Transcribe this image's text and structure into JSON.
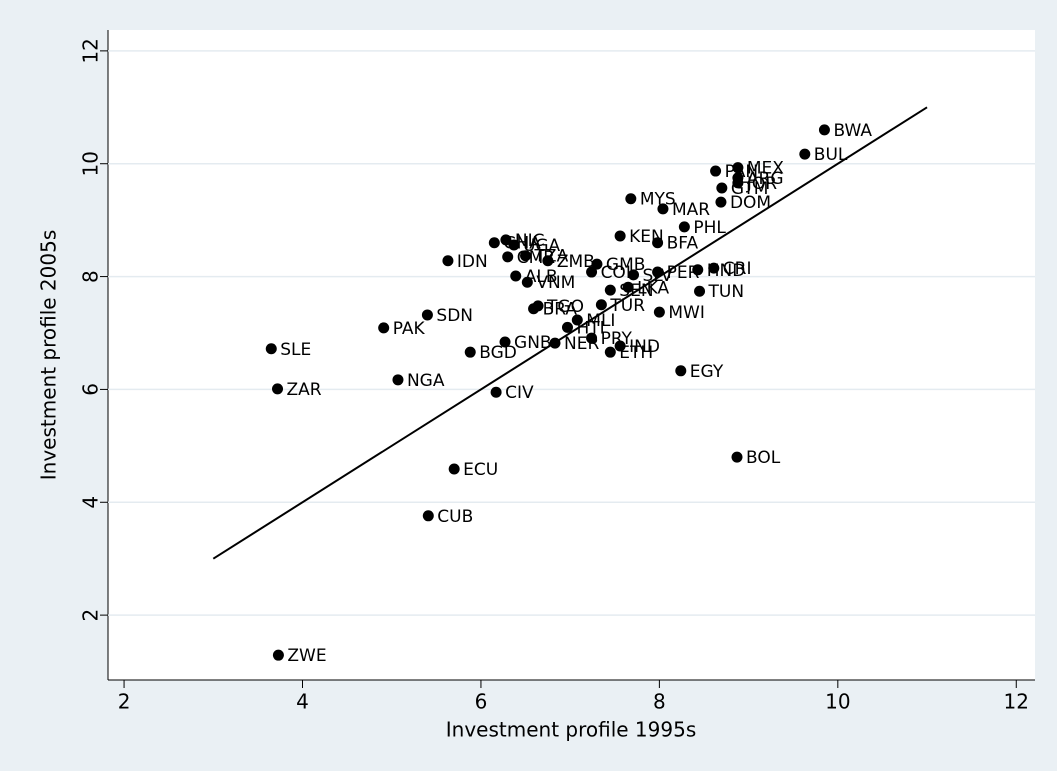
{
  "chart_data": {
    "type": "scatter",
    "xlabel": "Investment profile 1995s",
    "ylabel": "Investment profile 2005s",
    "xlim": [
      1.82,
      12.21
    ],
    "ylim": [
      0.85,
      12.37
    ],
    "xticks": [
      2,
      4,
      6,
      8,
      10,
      12
    ],
    "yticks": [
      2,
      4,
      6,
      8,
      10,
      12
    ],
    "grid": true,
    "color": "#000000",
    "point_labels": [
      "BWA",
      "BUL",
      "PAN",
      "MEX",
      "ARG",
      "JOR",
      "GTM",
      "DOM",
      "MYS",
      "MAR",
      "PHL",
      "KEN",
      "BFA",
      "CRI",
      "HND",
      "TUN",
      "MWI",
      "EGY",
      "BOL",
      "GHA",
      "NIC",
      "UGA",
      "CMR",
      "TZA",
      "ZMB",
      "GMB",
      "IDN",
      "ALB",
      "VNM",
      "SEN",
      "LKA",
      "COL",
      "SLV",
      "PER",
      "TUR",
      "TGO",
      "BRA",
      "SDN",
      "PAK",
      "MLI",
      "HTI",
      "PRY",
      "GNB",
      "NER",
      "ETH",
      "IND",
      "BGD",
      "SLE",
      "ZAR",
      "NGA",
      "CIV",
      "ECU",
      "CUB",
      "ZWE"
    ],
    "x": [
      9.85,
      9.63,
      8.63,
      8.88,
      8.88,
      8.88,
      8.7,
      8.69,
      7.68,
      8.04,
      8.28,
      7.56,
      7.98,
      8.61,
      8.43,
      8.45,
      8.0,
      8.24,
      8.87,
      6.15,
      6.28,
      6.37,
      6.3,
      6.5,
      6.75,
      7.3,
      5.63,
      6.39,
      6.52,
      7.45,
      7.65,
      7.24,
      7.71,
      7.98,
      7.35,
      6.64,
      6.59,
      5.4,
      4.91,
      7.08,
      6.97,
      7.24,
      6.27,
      6.83,
      7.45,
      7.56,
      5.88,
      3.65,
      3.72,
      5.07,
      6.17,
      5.7,
      5.41,
      3.73
    ],
    "y": [
      10.6,
      10.17,
      9.87,
      9.93,
      9.75,
      9.66,
      9.57,
      9.32,
      9.38,
      9.2,
      8.88,
      8.72,
      8.6,
      8.15,
      8.12,
      7.74,
      7.37,
      6.33,
      4.8,
      8.6,
      8.65,
      8.56,
      8.35,
      8.37,
      8.28,
      8.22,
      8.28,
      8.01,
      7.9,
      7.76,
      7.81,
      8.08,
      8.03,
      8.08,
      7.5,
      7.48,
      7.43,
      7.32,
      7.09,
      7.23,
      7.1,
      6.91,
      6.84,
      6.82,
      6.66,
      6.77,
      6.66,
      6.72,
      6.01,
      6.17,
      5.95,
      4.59,
      3.76,
      1.29
    ],
    "line": {
      "x": [
        3,
        11
      ],
      "y": [
        3,
        11
      ]
    }
  }
}
